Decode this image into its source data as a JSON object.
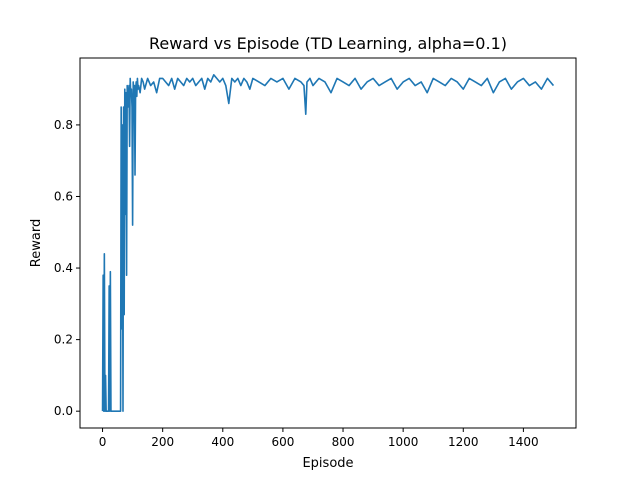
{
  "chart_data": {
    "type": "line",
    "title": "Reward vs Episode (TD Learning, alpha=0.1)",
    "xlabel": "Episode",
    "ylabel": "Reward",
    "xlim": [
      -75,
      1575
    ],
    "ylim": [
      -0.047,
      0.987
    ],
    "xticks": [
      0,
      200,
      400,
      600,
      800,
      1000,
      1200,
      1400
    ],
    "yticks": [
      0.0,
      0.2,
      0.4,
      0.6,
      0.8
    ],
    "ytick_labels": [
      "0.0",
      "0.2",
      "0.4",
      "0.6",
      "0.8"
    ],
    "grid": false,
    "legend": "none",
    "series": [
      {
        "color": "#1f77b4",
        "x": [
          0,
          2,
          4,
          6,
          8,
          10,
          12,
          14,
          16,
          18,
          20,
          22,
          24,
          26,
          28,
          30,
          32,
          34,
          36,
          38,
          40,
          42,
          44,
          46,
          48,
          50,
          52,
          54,
          56,
          58,
          60,
          62,
          64,
          66,
          68,
          70,
          72,
          74,
          76,
          78,
          80,
          82,
          84,
          86,
          88,
          90,
          92,
          94,
          96,
          98,
          100,
          102,
          104,
          106,
          108,
          110,
          112,
          114,
          116,
          118,
          120,
          125,
          130,
          135,
          140,
          150,
          160,
          170,
          180,
          190,
          200,
          210,
          220,
          230,
          240,
          250,
          260,
          270,
          280,
          290,
          300,
          310,
          320,
          330,
          340,
          350,
          360,
          370,
          380,
          390,
          400,
          410,
          420,
          430,
          440,
          450,
          460,
          470,
          480,
          490,
          500,
          520,
          540,
          560,
          580,
          600,
          620,
          640,
          660,
          670,
          676,
          680,
          690,
          700,
          720,
          740,
          760,
          780,
          800,
          820,
          840,
          860,
          880,
          900,
          920,
          940,
          960,
          980,
          1000,
          1020,
          1040,
          1060,
          1080,
          1100,
          1120,
          1140,
          1160,
          1180,
          1200,
          1220,
          1240,
          1260,
          1280,
          1300,
          1320,
          1340,
          1360,
          1380,
          1400,
          1420,
          1440,
          1460,
          1480,
          1500
        ],
        "y": [
          0.0,
          0.38,
          0.0,
          0.44,
          0.0,
          0.1,
          0.0,
          0.0,
          0.0,
          0.0,
          0.0,
          0.35,
          0.0,
          0.39,
          0.0,
          0.0,
          0.0,
          0.0,
          0.0,
          0.0,
          0.0,
          0.0,
          0.0,
          0.0,
          0.0,
          0.0,
          0.0,
          0.0,
          0.0,
          0.0,
          0.0,
          0.85,
          0.23,
          0.8,
          0.0,
          0.85,
          0.27,
          0.9,
          0.55,
          0.89,
          0.38,
          0.91,
          0.85,
          0.88,
          0.91,
          0.74,
          0.93,
          0.88,
          0.9,
          0.85,
          0.52,
          0.92,
          0.89,
          0.91,
          0.66,
          0.9,
          0.92,
          0.88,
          0.93,
          0.9,
          0.91,
          0.89,
          0.93,
          0.92,
          0.9,
          0.93,
          0.91,
          0.92,
          0.89,
          0.93,
          0.93,
          0.92,
          0.91,
          0.93,
          0.9,
          0.93,
          0.92,
          0.91,
          0.93,
          0.92,
          0.93,
          0.91,
          0.92,
          0.93,
          0.9,
          0.93,
          0.92,
          0.94,
          0.93,
          0.92,
          0.93,
          0.91,
          0.86,
          0.93,
          0.92,
          0.93,
          0.91,
          0.93,
          0.92,
          0.9,
          0.93,
          0.92,
          0.91,
          0.93,
          0.92,
          0.93,
          0.9,
          0.93,
          0.92,
          0.91,
          0.83,
          0.92,
          0.93,
          0.91,
          0.93,
          0.92,
          0.89,
          0.93,
          0.92,
          0.91,
          0.93,
          0.9,
          0.92,
          0.93,
          0.91,
          0.92,
          0.93,
          0.9,
          0.92,
          0.93,
          0.91,
          0.92,
          0.89,
          0.93,
          0.92,
          0.91,
          0.93,
          0.92,
          0.9,
          0.93,
          0.92,
          0.91,
          0.93,
          0.89,
          0.92,
          0.93,
          0.9,
          0.92,
          0.93,
          0.91,
          0.92,
          0.9,
          0.93,
          0.91
        ]
      }
    ]
  }
}
